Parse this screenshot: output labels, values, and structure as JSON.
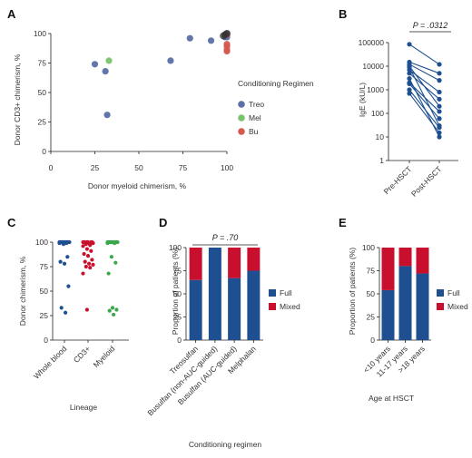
{
  "colors": {
    "navy": "#1d4f91",
    "treo": "#5b6fa8",
    "mel": "#7ac36a",
    "bu": "#d45a4f",
    "full": "#1d4f91",
    "mixed": "#c8102e",
    "cd3": "#c8102e",
    "myeloid": "#3aa84a"
  },
  "chart_data": [
    {
      "panel": "A",
      "type": "scatter",
      "xlabel": "Donor myeloid chimerism, %",
      "ylabel": "Donor CD3+ chimerism, %",
      "xlim": [
        0,
        100
      ],
      "ylim": [
        0,
        100
      ],
      "xticks": [
        "0",
        "25",
        "50",
        "75",
        "100"
      ],
      "yticks": [
        "0",
        "25",
        "50",
        "75",
        "100"
      ],
      "legend_title": "Conditioning Regimen",
      "legend_position": "right",
      "series": [
        {
          "name": "Treo",
          "color": "#5b6fa8",
          "points": [
            [
              25,
              74
            ],
            [
              31,
              68
            ],
            [
              32,
              31
            ],
            [
              68,
              77
            ],
            [
              79,
              96
            ],
            [
              91,
              94
            ],
            [
              99,
              98
            ],
            [
              100,
              100
            ],
            [
              100,
              99
            ],
            [
              99,
              97
            ],
            [
              100,
              98
            ],
            [
              100,
              97
            ]
          ]
        },
        {
          "name": "Mel",
          "color": "#7ac36a",
          "points": [
            [
              33,
              77
            ],
            [
              99,
              99
            ]
          ]
        },
        {
          "name": "Bu",
          "color": "#d45a4f",
          "points": [
            [
              100,
              91
            ],
            [
              100,
              89
            ],
            [
              100,
              86
            ],
            [
              100,
              85
            ],
            [
              100,
              99
            ]
          ]
        }
      ]
    },
    {
      "panel": "B",
      "type": "line",
      "ylabel": "IgE (kU/L)",
      "yscale": "log",
      "ylim": [
        1,
        100000
      ],
      "yticks": [
        "1",
        "10",
        "100",
        "1000",
        "10000",
        "100000"
      ],
      "categories": [
        "Pre-HSCT",
        "Post-HSCT"
      ],
      "annotation": "P = .0312",
      "pairs": [
        [
          85000,
          12000
        ],
        [
          15000,
          5000
        ],
        [
          12000,
          2500
        ],
        [
          7000,
          800
        ],
        [
          5000,
          400
        ],
        [
          2000,
          120
        ],
        [
          1800,
          60
        ],
        [
          1000,
          25
        ],
        [
          700,
          15
        ],
        [
          9000,
          30
        ],
        [
          3000,
          10
        ],
        [
          10000,
          200
        ]
      ]
    },
    {
      "panel": "C",
      "type": "scatter",
      "xlabel": "Lineage",
      "ylabel": "Donor chimerism, %",
      "ylim": [
        0,
        100
      ],
      "yticks": [
        "0",
        "25",
        "50",
        "75",
        "100"
      ],
      "categories": [
        "Whole blood",
        "CD3+",
        "Myeloid"
      ],
      "series": [
        {
          "name": "Whole blood",
          "color": "#1d4f91",
          "values": [
            100,
            100,
            100,
            100,
            100,
            100,
            100,
            100,
            100,
            100,
            99,
            99,
            98,
            85,
            80,
            78,
            55,
            33,
            28
          ]
        },
        {
          "name": "CD3+",
          "color": "#c8102e",
          "values": [
            100,
            100,
            100,
            100,
            100,
            100,
            100,
            99,
            99,
            98,
            97,
            96,
            93,
            91,
            88,
            86,
            82,
            80,
            78,
            77,
            75,
            74,
            68,
            31
          ]
        },
        {
          "name": "Myeloid",
          "color": "#3aa84a",
          "values": [
            100,
            100,
            100,
            100,
            100,
            100,
            100,
            100,
            100,
            100,
            99,
            99,
            85,
            79,
            68,
            33,
            31,
            30,
            26
          ]
        }
      ]
    },
    {
      "panel": "D",
      "type": "bar",
      "stacked": true,
      "xlabel": "Conditioning regimen",
      "ylabel": "Proportion of patients (%)",
      "ylim": [
        0,
        100
      ],
      "yticks": [
        "0",
        "25",
        "50",
        "75",
        "100"
      ],
      "categories": [
        "Treosulfan",
        "Busulfan (non-AUC-guided)",
        "Busulfan (AUC-guided)",
        "Melphalan"
      ],
      "annotation": "P = .70",
      "legend_position": "right",
      "series": [
        {
          "name": "Full",
          "color": "#1d4f91",
          "values": [
            65,
            100,
            67,
            75
          ]
        },
        {
          "name": "Mixed",
          "color": "#c8102e",
          "values": [
            35,
            0,
            33,
            25
          ]
        }
      ]
    },
    {
      "panel": "E",
      "type": "bar",
      "stacked": true,
      "xlabel": "Age at HSCT",
      "ylabel": "Proportion of patients (%)",
      "ylim": [
        0,
        100
      ],
      "yticks": [
        "0",
        "25",
        "50",
        "75",
        "100"
      ],
      "categories": [
        "<10 years",
        "11-17 years",
        ">18 years"
      ],
      "legend_position": "right",
      "series": [
        {
          "name": "Full",
          "color": "#1d4f91",
          "values": [
            54,
            80,
            72
          ]
        },
        {
          "name": "Mixed",
          "color": "#c8102e",
          "values": [
            46,
            20,
            28
          ]
        }
      ]
    }
  ]
}
